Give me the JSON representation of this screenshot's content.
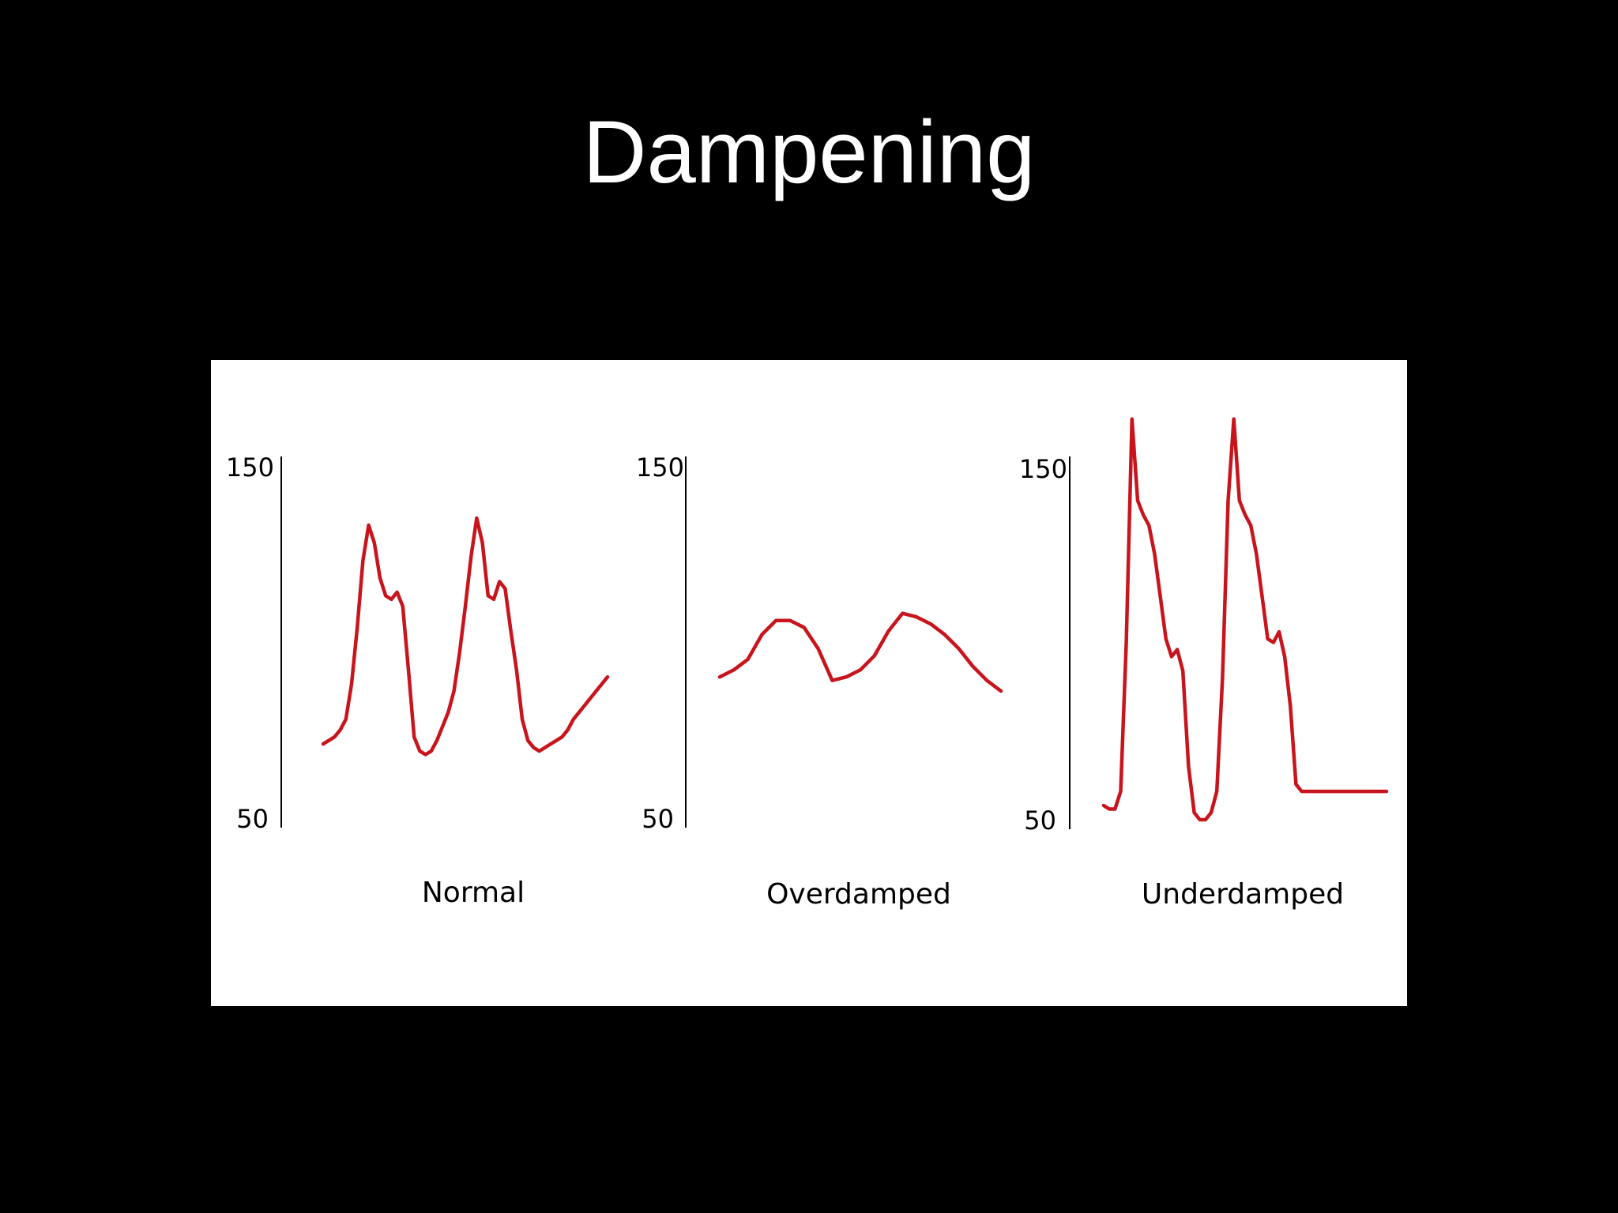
{
  "slide": {
    "title": "Dampening"
  },
  "colors": {
    "background": "#000000",
    "title": "#ffffff",
    "panel": "#ffffff",
    "trace": "#c8141c"
  },
  "chart_data": [
    {
      "type": "line",
      "label": "Normal",
      "ylim": [
        50,
        150
      ],
      "yticks": [
        "150",
        "50"
      ],
      "grid": false,
      "series": [
        {
          "x": [
            0,
            2,
            4,
            6,
            8,
            10,
            12,
            14,
            16,
            18,
            20,
            22,
            24,
            26,
            28,
            30,
            32,
            34,
            36,
            38,
            40,
            42,
            44,
            46,
            48,
            50,
            52,
            54,
            56,
            58,
            60,
            62,
            64,
            66,
            68,
            70,
            72,
            74,
            76,
            78,
            80,
            82,
            84,
            86,
            88,
            90,
            92,
            94,
            96,
            98,
            100
          ],
          "values": [
            71,
            72,
            73,
            75,
            78,
            88,
            104,
            123,
            133,
            128,
            118,
            113,
            112,
            114,
            110,
            92,
            73,
            69,
            68,
            69,
            72,
            76,
            80,
            86,
            97,
            110,
            124,
            135,
            128,
            113,
            112,
            117,
            115,
            103,
            92,
            78,
            72,
            70,
            69,
            70,
            71,
            72,
            73,
            75,
            78,
            80,
            82,
            84,
            86,
            88,
            90
          ]
        }
      ]
    },
    {
      "type": "line",
      "label": "Overdamped",
      "ylim": [
        50,
        150
      ],
      "yticks": [
        "150",
        "50"
      ],
      "grid": false,
      "series": [
        {
          "x": [
            0,
            5,
            10,
            15,
            20,
            25,
            30,
            35,
            40,
            45,
            50,
            55,
            60,
            65,
            70,
            75,
            80,
            85,
            90,
            95,
            100
          ],
          "values": [
            90,
            92,
            95,
            102,
            106,
            106,
            104,
            98,
            89,
            90,
            92,
            96,
            103,
            108,
            107,
            105,
            102,
            98,
            93,
            89,
            86
          ]
        }
      ]
    },
    {
      "type": "line",
      "label": "Underdamped",
      "ylim": [
        50,
        150
      ],
      "yticks": [
        "150",
        "50"
      ],
      "grid": false,
      "series": [
        {
          "x": [
            0,
            2,
            4,
            6,
            8,
            10,
            12,
            14,
            16,
            18,
            20,
            22,
            24,
            26,
            28,
            30,
            32,
            34,
            36,
            38,
            40,
            42,
            44,
            46,
            48,
            50,
            52,
            54,
            56,
            58,
            60,
            62,
            64,
            66,
            68,
            70,
            72,
            74,
            76,
            78,
            80,
            82,
            84,
            86,
            88,
            90,
            92,
            94,
            96,
            98,
            100
          ],
          "values": [
            54,
            53,
            53,
            58,
            100,
            163,
            140,
            136,
            133,
            125,
            113,
            101,
            96,
            98,
            92,
            65,
            52,
            50,
            50,
            52,
            58,
            90,
            140,
            163,
            140,
            136,
            133,
            125,
            113,
            101,
            100,
            103,
            96,
            82,
            60,
            58,
            58,
            58,
            58,
            58,
            58,
            58,
            58,
            58,
            58,
            58,
            58,
            58,
            58,
            58,
            58
          ]
        }
      ]
    }
  ]
}
